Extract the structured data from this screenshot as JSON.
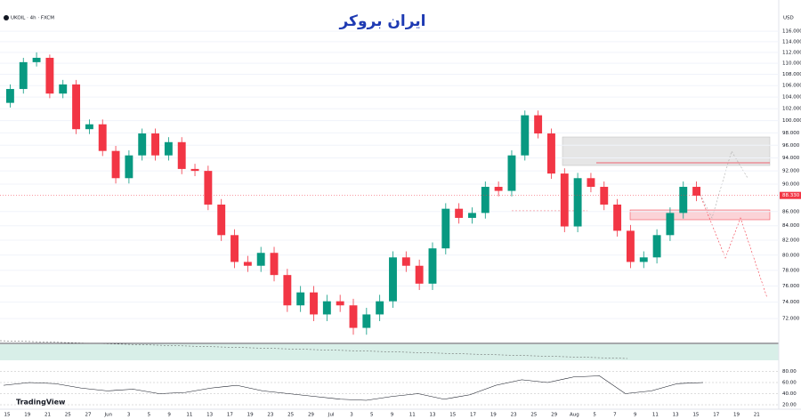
{
  "header": {
    "symbol": "UKOIL · 4h · FXCM",
    "currency": "USD",
    "brand": "ایران بروکر",
    "platform": "TradingView"
  },
  "chart_data": {
    "type": "candlestick",
    "log_scale": true,
    "up_color": "#089981",
    "down_color": "#f23645",
    "ylim": [
      69.2,
      119.5
    ],
    "yticks": [
      {
        "value": 116,
        "label": "116.000"
      },
      {
        "value": 114,
        "label": "114.000"
      },
      {
        "value": 112,
        "label": "112.000"
      },
      {
        "value": 110,
        "label": "110.000"
      },
      {
        "value": 108,
        "label": "108.000"
      },
      {
        "value": 106,
        "label": "106.000"
      },
      {
        "value": 104,
        "label": "104.000"
      },
      {
        "value": 102,
        "label": "102.000"
      },
      {
        "value": 100,
        "label": "100.000"
      },
      {
        "value": 98,
        "label": "98.000"
      },
      {
        "value": 96,
        "label": "96.000"
      },
      {
        "value": 94,
        "label": "94.000"
      },
      {
        "value": 92,
        "label": "92.000"
      },
      {
        "value": 90,
        "label": "90.000"
      },
      {
        "value": 86,
        "label": "86.000"
      },
      {
        "value": 84,
        "label": "84.000"
      },
      {
        "value": 82,
        "label": "82.000"
      },
      {
        "value": 80,
        "label": "80.000"
      },
      {
        "value": 78,
        "label": "78.000"
      },
      {
        "value": 76,
        "label": "76.000"
      },
      {
        "value": 74,
        "label": "74.000"
      },
      {
        "value": 72,
        "label": "72.000"
      }
    ],
    "last_price": {
      "value": 88.33,
      "label": "88.330"
    },
    "open": [
      103.0,
      105.4,
      110.2,
      111.0,
      104.6,
      106.2,
      98.6,
      99.4,
      95.1,
      90.9,
      94.4,
      97.9,
      94.4,
      96.5,
      92.3,
      92.0,
      87.0,
      82.7,
      79.1,
      78.6,
      80.3,
      77.4,
      73.6,
      75.2,
      72.5,
      74.1,
      73.6,
      70.9,
      72.5,
      74.1,
      79.7,
      78.6,
      76.3,
      80.9,
      86.4,
      85.1,
      85.8,
      89.6,
      89.0,
      94.4,
      100.9,
      97.9,
      91.6,
      83.9,
      90.9,
      89.6,
      87.0,
      83.3,
      79.1,
      79.7,
      82.7,
      85.8,
      89.6
    ],
    "high": [
      106.2,
      111.0,
      112.0,
      111.6,
      107.0,
      107.0,
      100.2,
      100.2,
      95.9,
      95.2,
      98.7,
      98.7,
      97.3,
      97.3,
      93.1,
      92.8,
      87.8,
      83.5,
      79.9,
      81.1,
      81.1,
      78.2,
      76.0,
      76.0,
      74.9,
      74.9,
      74.4,
      73.3,
      74.9,
      80.5,
      80.5,
      79.4,
      81.7,
      87.2,
      87.2,
      86.6,
      90.4,
      90.4,
      95.2,
      101.7,
      101.7,
      98.7,
      92.4,
      91.7,
      91.7,
      90.4,
      87.8,
      84.1,
      80.5,
      83.5,
      86.6,
      90.4,
      90.4
    ],
    "low": [
      102.2,
      104.6,
      109.4,
      103.8,
      103.8,
      97.8,
      97.8,
      94.3,
      90.1,
      90.1,
      93.6,
      93.6,
      93.6,
      91.5,
      91.2,
      86.2,
      81.9,
      78.3,
      77.8,
      77.8,
      76.6,
      72.8,
      72.8,
      71.7,
      71.7,
      72.8,
      70.1,
      70.1,
      71.7,
      73.3,
      77.8,
      75.5,
      75.5,
      80.1,
      84.3,
      84.3,
      85.0,
      88.2,
      88.2,
      93.6,
      97.1,
      90.8,
      83.1,
      83.1,
      88.8,
      86.2,
      82.5,
      78.3,
      78.3,
      78.9,
      81.9,
      85.0,
      87.5
    ],
    "close": [
      105.4,
      110.2,
      111.0,
      104.6,
      106.2,
      98.6,
      99.4,
      95.1,
      90.9,
      94.4,
      97.9,
      94.4,
      96.5,
      92.3,
      92.0,
      87.0,
      82.7,
      79.1,
      78.6,
      80.3,
      77.4,
      73.6,
      75.2,
      72.5,
      74.1,
      73.6,
      70.9,
      72.5,
      74.1,
      79.7,
      78.6,
      76.3,
      80.9,
      86.4,
      85.1,
      85.8,
      89.6,
      89.0,
      94.4,
      100.9,
      97.9,
      91.6,
      83.9,
      90.9,
      89.6,
      87.0,
      83.3,
      79.1,
      79.7,
      82.7,
      85.8,
      89.6,
      88.3
    ],
    "x_labels": [
      "15",
      "19",
      "21",
      "25",
      "27",
      "Jun",
      "3",
      "5",
      "9",
      "11",
      "13",
      "17",
      "19",
      "23",
      "25",
      "29",
      "Jul",
      "3",
      "5",
      "9",
      "11",
      "13",
      "15",
      "17",
      "19",
      "23",
      "25",
      "29",
      "Aug",
      "5",
      "7",
      "9",
      "11",
      "13",
      "15",
      "17",
      "19",
      "21"
    ],
    "oscillator": {
      "color": "#131722",
      "ylim": [
        12,
        100
      ],
      "yticks": [
        {
          "value": 80,
          "label": "80.00"
        },
        {
          "value": 60,
          "label": "60.00"
        },
        {
          "value": 40,
          "label": "40.00"
        },
        {
          "value": 20,
          "label": "20.00"
        }
      ],
      "values": [
        55,
        60,
        58,
        50,
        45,
        48,
        40,
        42,
        50,
        55,
        45,
        40,
        35,
        30,
        28,
        35,
        40,
        30,
        38,
        55,
        65,
        60,
        70,
        72,
        40,
        45,
        58,
        60
      ]
    }
  }
}
